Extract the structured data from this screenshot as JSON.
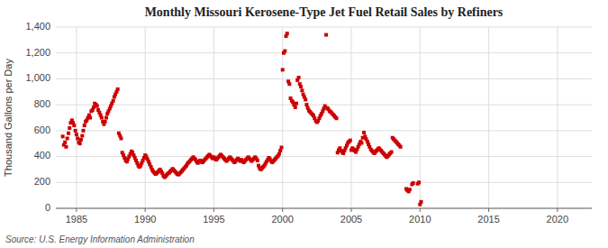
{
  "chart_data": {
    "type": "scatter",
    "title": "Monthly Missouri Kerosene-Type Jet Fuel Retail Sales by Refiners",
    "y_label": "Thousand Gallons per Day",
    "annotations": [
      "Source: U.S. Energy Information Administration"
    ],
    "color": "#cc0000",
    "marker": "square",
    "grid": true,
    "xlim": [
      1983.5,
      2022.5
    ],
    "ylim": [
      0,
      1400
    ],
    "xticks": [
      1985,
      1990,
      1995,
      2000,
      2005,
      2010,
      2015,
      2020
    ],
    "yticks": [
      0,
      200,
      400,
      600,
      800,
      {
        "value": 1000,
        "label": "1,000"
      },
      {
        "value": 1200,
        "label": "1,200"
      },
      {
        "value": 1400,
        "label": "1,400"
      }
    ],
    "x": [
      1984.0,
      1984.08,
      1984.17,
      1984.25,
      1984.33,
      1984.42,
      1984.5,
      1984.58,
      1984.67,
      1984.75,
      1984.83,
      1984.92,
      1985.0,
      1985.08,
      1985.17,
      1985.25,
      1985.33,
      1985.42,
      1985.5,
      1985.58,
      1985.67,
      1985.75,
      1985.83,
      1985.92,
      1986.0,
      1986.08,
      1986.17,
      1986.25,
      1986.33,
      1986.42,
      1986.5,
      1986.58,
      1986.67,
      1986.75,
      1986.83,
      1986.92,
      1987.0,
      1987.08,
      1987.17,
      1987.25,
      1987.33,
      1987.42,
      1987.5,
      1987.58,
      1987.67,
      1987.75,
      1987.83,
      1987.92,
      1988.0,
      1988.08,
      1988.17,
      1988.25,
      1988.33,
      1988.42,
      1988.5,
      1988.58,
      1988.67,
      1988.75,
      1988.83,
      1988.92,
      1989.0,
      1989.08,
      1989.17,
      1989.25,
      1989.33,
      1989.42,
      1989.5,
      1989.58,
      1989.67,
      1989.75,
      1989.83,
      1989.92,
      1990.0,
      1990.08,
      1990.17,
      1990.25,
      1990.33,
      1990.42,
      1990.5,
      1990.58,
      1990.67,
      1990.75,
      1990.83,
      1990.92,
      1991.0,
      1991.08,
      1991.17,
      1991.25,
      1991.33,
      1991.42,
      1991.5,
      1991.58,
      1991.67,
      1991.75,
      1991.83,
      1991.92,
      1992.0,
      1992.08,
      1992.17,
      1992.25,
      1992.33,
      1992.42,
      1992.5,
      1992.58,
      1992.67,
      1992.75,
      1992.83,
      1992.92,
      1993.0,
      1993.08,
      1993.17,
      1993.25,
      1993.33,
      1993.42,
      1993.5,
      1993.58,
      1993.67,
      1993.75,
      1993.83,
      1993.92,
      1994.0,
      1994.08,
      1994.17,
      1994.25,
      1994.33,
      1994.42,
      1994.5,
      1994.58,
      1994.67,
      1994.75,
      1994.83,
      1994.92,
      1995.0,
      1995.08,
      1995.17,
      1995.25,
      1995.33,
      1995.42,
      1995.5,
      1995.58,
      1995.67,
      1995.75,
      1995.83,
      1995.92,
      1996.0,
      1996.08,
      1996.17,
      1996.25,
      1996.33,
      1996.42,
      1996.5,
      1996.58,
      1996.67,
      1996.75,
      1996.83,
      1996.92,
      1997.0,
      1997.08,
      1997.17,
      1997.25,
      1997.33,
      1997.42,
      1997.5,
      1997.58,
      1997.67,
      1997.75,
      1997.83,
      1997.92,
      1998.0,
      1998.08,
      1998.17,
      1998.25,
      1998.33,
      1998.42,
      1998.5,
      1998.58,
      1998.67,
      1998.75,
      1998.83,
      1998.92,
      1999.0,
      1999.08,
      1999.17,
      1999.25,
      1999.33,
      1999.42,
      1999.5,
      1999.58,
      1999.67,
      1999.75,
      1999.83,
      1999.92,
      2000.0,
      2000.08,
      2000.17,
      2000.25,
      2000.33,
      2000.42,
      2000.5,
      2000.58,
      2000.67,
      2000.75,
      2000.83,
      2000.92,
      2001.0,
      2001.08,
      2001.17,
      2001.25,
      2001.33,
      2001.42,
      2001.5,
      2001.58,
      2001.67,
      2001.75,
      2001.83,
      2001.92,
      2002.0,
      2002.08,
      2002.17,
      2002.25,
      2002.33,
      2002.42,
      2002.5,
      2002.58,
      2002.67,
      2002.75,
      2002.83,
      2002.92,
      2003.0,
      2003.08,
      2003.17,
      2003.25,
      2003.33,
      2003.42,
      2003.5,
      2003.58,
      2003.67,
      2003.75,
      2003.83,
      2003.92,
      2004.0,
      2004.08,
      2004.17,
      2004.25,
      2004.33,
      2004.42,
      2004.5,
      2004.58,
      2004.67,
      2004.75,
      2004.83,
      2004.92,
      2005.0,
      2005.08,
      2005.17,
      2005.25,
      2005.33,
      2005.42,
      2005.5,
      2005.58,
      2005.67,
      2005.75,
      2005.83,
      2005.92,
      2006.0,
      2006.08,
      2006.17,
      2006.25,
      2006.33,
      2006.42,
      2006.5,
      2006.58,
      2006.67,
      2006.75,
      2006.83,
      2006.92,
      2007.0,
      2007.08,
      2007.17,
      2007.25,
      2007.33,
      2007.42,
      2007.5,
      2007.58,
      2007.67,
      2007.75,
      2007.83,
      2007.92,
      2008.0,
      2008.08,
      2008.17,
      2008.25,
      2008.33,
      2008.42,
      2008.5,
      2008.58,
      2009.0,
      2009.08,
      2009.17,
      2009.25,
      2009.42,
      2009.5,
      2009.83,
      2009.92,
      2010.0,
      2010.08
    ],
    "values": [
      555,
      490,
      510,
      475,
      540,
      580,
      620,
      660,
      680,
      660,
      640,
      600,
      570,
      540,
      510,
      500,
      530,
      560,
      600,
      640,
      670,
      680,
      700,
      720,
      700,
      750,
      760,
      780,
      810,
      800,
      790,
      760,
      740,
      720,
      700,
      670,
      650,
      670,
      700,
      730,
      750,
      770,
      790,
      810,
      830,
      860,
      880,
      900,
      920,
      580,
      560,
      540,
      430,
      410,
      390,
      370,
      360,
      380,
      400,
      420,
      440,
      430,
      410,
      390,
      370,
      350,
      330,
      320,
      330,
      350,
      370,
      390,
      410,
      400,
      380,
      360,
      340,
      320,
      300,
      285,
      275,
      265,
      270,
      280,
      290,
      300,
      285,
      270,
      250,
      240,
      250,
      260,
      270,
      275,
      285,
      295,
      305,
      295,
      285,
      275,
      265,
      260,
      268,
      278,
      288,
      298,
      308,
      320,
      330,
      345,
      355,
      365,
      375,
      385,
      395,
      385,
      375,
      360,
      350,
      360,
      370,
      360,
      355,
      365,
      375,
      385,
      395,
      405,
      415,
      405,
      395,
      385,
      395,
      385,
      375,
      385,
      395,
      405,
      415,
      405,
      395,
      385,
      375,
      365,
      375,
      385,
      395,
      385,
      375,
      365,
      355,
      365,
      375,
      385,
      375,
      365,
      375,
      365,
      355,
      365,
      375,
      385,
      395,
      385,
      375,
      365,
      375,
      385,
      395,
      385,
      370,
      330,
      310,
      300,
      310,
      320,
      330,
      345,
      360,
      375,
      390,
      380,
      365,
      355,
      365,
      375,
      385,
      395,
      405,
      420,
      445,
      470,
      1070,
      1200,
      1215,
      1330,
      1350,
      980,
      960,
      850,
      830,
      820,
      800,
      780,
      810,
      990,
      1010,
      960,
      940,
      910,
      880,
      860,
      840,
      800,
      775,
      755,
      745,
      735,
      725,
      715,
      695,
      675,
      665,
      675,
      695,
      715,
      730,
      750,
      770,
      790,
      1340,
      775,
      765,
      750,
      745,
      735,
      725,
      715,
      705,
      695,
      430,
      450,
      465,
      445,
      435,
      425,
      445,
      465,
      485,
      505,
      515,
      525,
      450,
      465,
      455,
      445,
      435,
      455,
      475,
      495,
      515,
      505,
      545,
      585,
      555,
      535,
      515,
      495,
      475,
      455,
      445,
      435,
      425,
      435,
      445,
      455,
      465,
      455,
      445,
      435,
      425,
      415,
      405,
      395,
      405,
      415,
      425,
      435,
      545,
      535,
      525,
      515,
      505,
      495,
      485,
      475,
      150,
      140,
      130,
      145,
      185,
      195,
      190,
      200,
      30,
      50
    ]
  }
}
